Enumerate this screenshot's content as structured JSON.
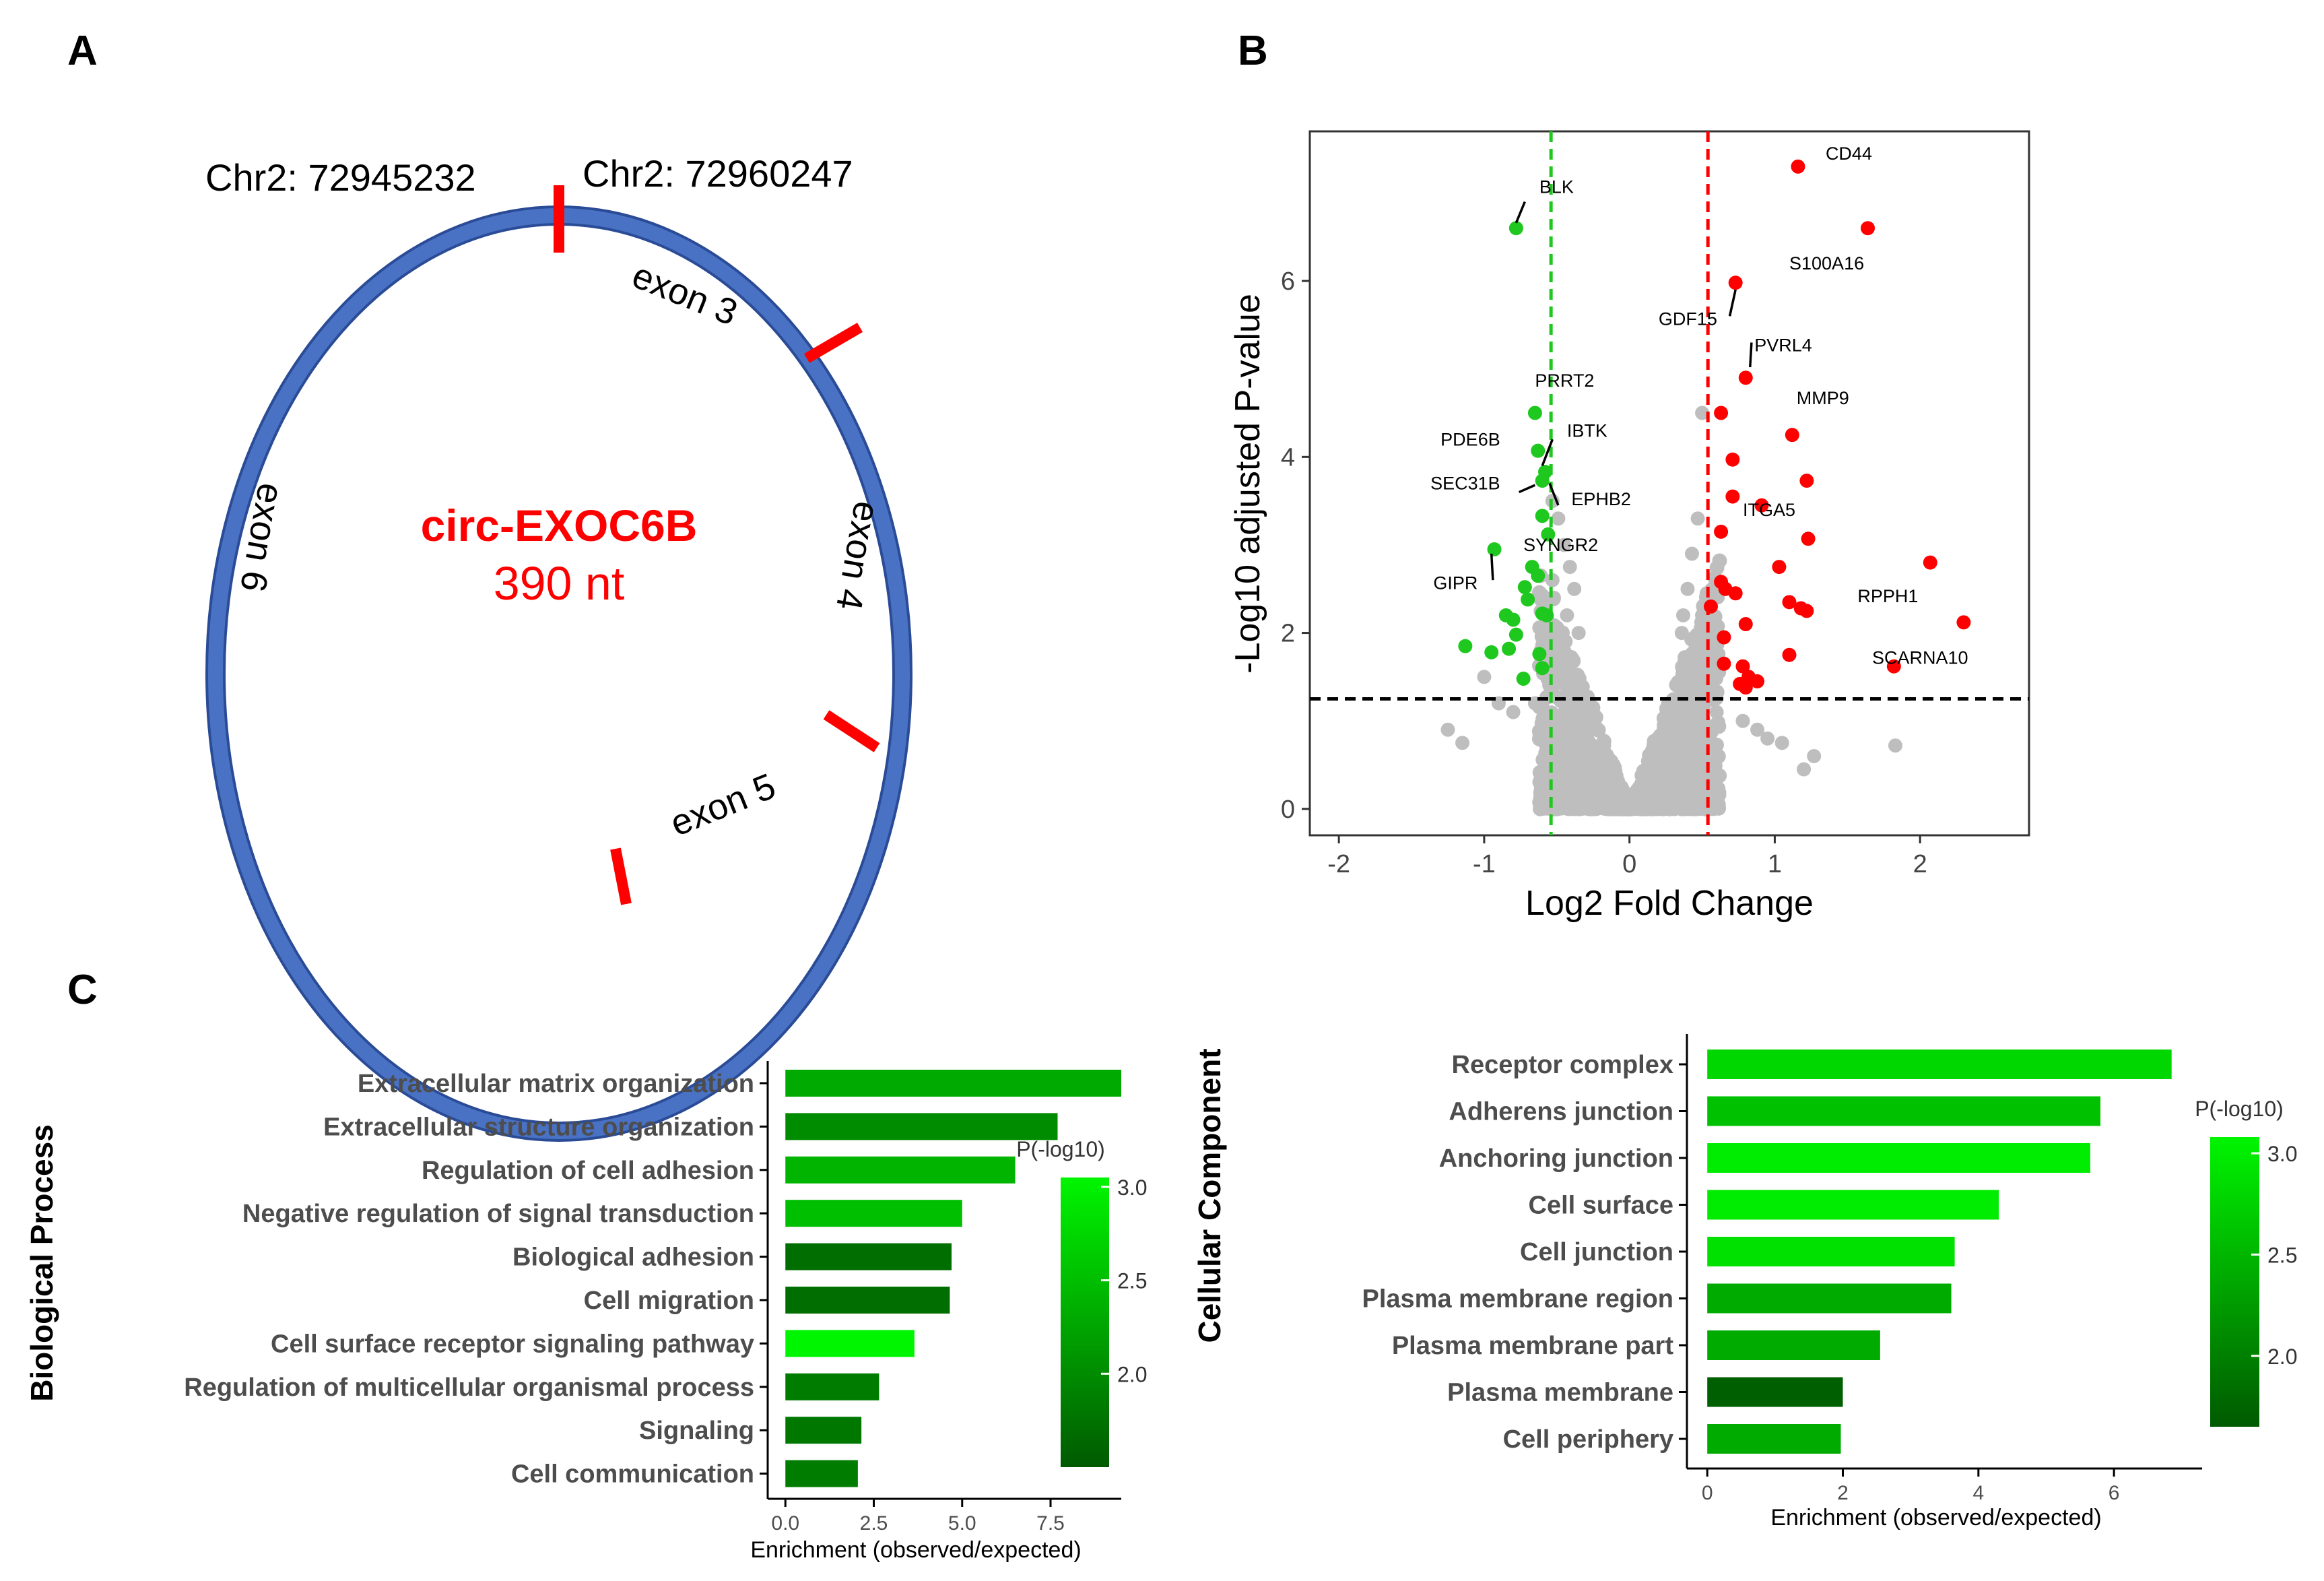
{
  "panels": {
    "a": {
      "letter": "A",
      "chr_left": "Chr2: 72945232",
      "chr_right": "Chr2: 72960247",
      "circ_name": "circ-EXOC6B",
      "circ_length": "390 nt",
      "exons": [
        "exon 3",
        "exon 4",
        "exon 5",
        "exon 6"
      ],
      "colors": {
        "ring": "#4a72c4",
        "ring_edge": "#2a4b96",
        "junction": "#ff0000",
        "label": "#ff0000"
      }
    },
    "b": {
      "letter": "B"
    },
    "c": {
      "letter": "C"
    }
  },
  "chart_data": [
    {
      "type": "scatter",
      "title": "",
      "xlabel": "Log2 Fold Change",
      "ylabel": "-Log10 adjusted P-value",
      "xlim": [
        -2.2,
        2.75
      ],
      "ylim": [
        -0.3,
        7.7
      ],
      "xticks": [
        -2,
        -1,
        0,
        1,
        2
      ],
      "yticks": [
        0,
        2,
        4,
        6
      ],
      "vlines": [
        -0.54,
        0.54
      ],
      "hline": 1.25,
      "colors": {
        "down": "#1ec81e",
        "up": "#ff0000",
        "ns": "#bebebe"
      },
      "series": [
        {
          "name": "down",
          "points": [
            [
              -0.78,
              6.6
            ],
            [
              -0.65,
              4.5
            ],
            [
              -0.63,
              4.07
            ],
            [
              -0.58,
              3.83
            ],
            [
              -0.6,
              3.73
            ],
            [
              -0.6,
              3.33
            ],
            [
              -0.56,
              3.12
            ],
            [
              -0.93,
              2.95
            ],
            [
              -0.67,
              2.75
            ],
            [
              -0.63,
              2.65
            ],
            [
              -0.72,
              2.52
            ],
            [
              -0.7,
              2.38
            ],
            [
              -0.85,
              2.2
            ],
            [
              -0.8,
              2.15
            ],
            [
              -0.6,
              2.22
            ],
            [
              -0.57,
              2.2
            ],
            [
              -0.78,
              1.98
            ],
            [
              -0.83,
              1.82
            ],
            [
              -1.13,
              1.85
            ],
            [
              -0.95,
              1.78
            ],
            [
              -0.62,
              1.76
            ],
            [
              -0.6,
              1.6
            ],
            [
              -0.73,
              1.48
            ]
          ]
        },
        {
          "name": "up",
          "points": [
            [
              1.16,
              7.3
            ],
            [
              1.64,
              6.6
            ],
            [
              0.73,
              5.98
            ],
            [
              0.8,
              4.9
            ],
            [
              0.63,
              4.5
            ],
            [
              1.12,
              4.25
            ],
            [
              0.71,
              3.97
            ],
            [
              1.22,
              3.73
            ],
            [
              0.71,
              3.55
            ],
            [
              0.91,
              3.45
            ],
            [
              0.63,
              3.15
            ],
            [
              1.23,
              3.07
            ],
            [
              2.07,
              2.8
            ],
            [
              1.03,
              2.75
            ],
            [
              0.63,
              2.58
            ],
            [
              0.66,
              2.5
            ],
            [
              0.73,
              2.45
            ],
            [
              0.56,
              2.3
            ],
            [
              1.1,
              2.35
            ],
            [
              1.18,
              2.28
            ],
            [
              1.22,
              2.25
            ],
            [
              0.8,
              2.1
            ],
            [
              2.3,
              2.12
            ],
            [
              0.65,
              1.95
            ],
            [
              1.1,
              1.75
            ],
            [
              0.65,
              1.65
            ],
            [
              0.78,
              1.62
            ],
            [
              0.82,
              1.5
            ],
            [
              0.88,
              1.45
            ],
            [
              0.76,
              1.42
            ],
            [
              0.8,
              1.38
            ],
            [
              1.82,
              1.62
            ]
          ]
        },
        {
          "name": "ns",
          "points": [
            [
              -0.53,
              3.5
            ],
            [
              -0.49,
              3.3
            ],
            [
              -0.45,
              3.0
            ],
            [
              -0.41,
              2.75
            ],
            [
              -0.38,
              2.5
            ],
            [
              -0.52,
              2.4
            ],
            [
              -0.43,
              2.2
            ],
            [
              -0.35,
              2.0
            ],
            [
              -0.53,
              2.6
            ],
            [
              -0.5,
              2.0
            ],
            [
              -1.0,
              1.5
            ],
            [
              -1.15,
              0.75
            ],
            [
              -0.9,
              1.2
            ],
            [
              -1.25,
              0.9
            ],
            [
              -0.55,
              1.8
            ],
            [
              0.5,
              4.5
            ],
            [
              0.47,
              3.3
            ],
            [
              0.43,
              2.9
            ],
            [
              0.4,
              2.5
            ],
            [
              0.37,
              2.2
            ],
            [
              0.36,
              2.0
            ],
            [
              0.5,
              2.2
            ],
            [
              0.45,
              1.8
            ],
            [
              0.52,
              2.0
            ],
            [
              1.2,
              0.45
            ],
            [
              1.27,
              0.6
            ],
            [
              1.83,
              0.72
            ],
            [
              0.95,
              0.8
            ],
            [
              1.05,
              0.75
            ],
            [
              0.56,
              1.7
            ],
            [
              0.6,
              1.1
            ],
            [
              -0.65,
              1.2
            ],
            [
              -0.8,
              1.1
            ],
            [
              0.78,
              1.0
            ],
            [
              0.88,
              0.9
            ]
          ]
        }
      ],
      "labels": [
        {
          "text": "CD44",
          "x": 1.35,
          "y": 7.38
        },
        {
          "text": "BLK",
          "x": -0.62,
          "y": 7.0
        },
        {
          "text": "S100A16",
          "x": 1.1,
          "y": 6.13
        },
        {
          "text": "GDF15",
          "x": 0.2,
          "y": 5.5
        },
        {
          "text": "PVRL4",
          "x": 0.86,
          "y": 5.2
        },
        {
          "text": "PRRT2",
          "x": -0.65,
          "y": 4.8
        },
        {
          "text": "MMP9",
          "x": 1.15,
          "y": 4.6
        },
        {
          "text": "IBTK",
          "x": -0.43,
          "y": 4.23
        },
        {
          "text": "PDE6B",
          "x": -1.3,
          "y": 4.13
        },
        {
          "text": "SEC31B",
          "x": -1.37,
          "y": 3.63
        },
        {
          "text": "EPHB2",
          "x": -0.4,
          "y": 3.45
        },
        {
          "text": "ITGA5",
          "x": 0.78,
          "y": 3.33
        },
        {
          "text": "SYNGR2",
          "x": -0.73,
          "y": 2.93
        },
        {
          "text": "GIPR",
          "x": -1.35,
          "y": 2.5
        },
        {
          "text": "RPPH1",
          "x": 1.57,
          "y": 2.35
        },
        {
          "text": "SCARNA10",
          "x": 1.67,
          "y": 1.65
        }
      ],
      "label_lines": [
        [
          -0.78,
          6.66,
          -0.72,
          6.9
        ],
        [
          0.73,
          5.9,
          0.69,
          5.6
        ],
        [
          0.83,
          5.02,
          0.84,
          5.3
        ],
        [
          -0.6,
          3.9,
          -0.53,
          4.2
        ],
        [
          -0.65,
          3.68,
          -0.76,
          3.6
        ],
        [
          -0.55,
          3.7,
          -0.49,
          3.45
        ],
        [
          -0.95,
          2.9,
          -0.94,
          2.6
        ]
      ]
    },
    {
      "type": "bar",
      "title": "",
      "side_title": "Biological Process",
      "xlabel": "Enrichment (observed/expected)",
      "ylabel": "",
      "xlim": [
        -0.5,
        9.5
      ],
      "xticks": [
        "0.0",
        "2.5",
        "5.0",
        "7.5"
      ],
      "xtick_values": [
        0,
        2.5,
        5,
        7.5
      ],
      "categories": [
        "Extracellular matrix organization",
        "Extracellular structure organization",
        "Regulation of cell adhesion",
        "Negative regulation of signal transduction",
        "Biological adhesion",
        "Cell migration",
        "Cell surface receptor signaling pathway",
        "Regulation of multicellular organismal process",
        "Signaling",
        "Cell communication"
      ],
      "values": [
        9.5,
        7.7,
        6.5,
        5.0,
        4.7,
        4.65,
        3.65,
        2.65,
        2.15,
        2.05
      ],
      "pvalues": [
        2.3,
        2.0,
        2.4,
        2.5,
        1.7,
        1.7,
        3.05,
        1.85,
        1.8,
        1.85
      ],
      "legend": {
        "title": "P(-log10)",
        "ticks": [
          "3.0",
          "2.5",
          "2.0"
        ],
        "tick_values": [
          3.0,
          2.5,
          2.0
        ],
        "range": [
          1.5,
          3.05
        ]
      },
      "colors": {
        "low": "#005a00",
        "high": "#00f500"
      }
    },
    {
      "type": "bar",
      "title": "",
      "side_title": "Cellular Component",
      "xlabel": "Enrichment (observed/expected)",
      "ylabel": "",
      "xlim": [
        -0.3,
        7.3
      ],
      "xticks": [
        "0",
        "2",
        "4",
        "6"
      ],
      "xtick_values": [
        0,
        2,
        4,
        6
      ],
      "categories": [
        "Receptor complex",
        "Adherens junction",
        "Anchoring junction",
        "Cell surface",
        "Cell junction",
        "Plasma membrane region",
        "Plasma membrane part",
        "Plasma membrane",
        "Cell periphery"
      ],
      "values": [
        6.85,
        5.8,
        5.65,
        4.3,
        3.65,
        3.6,
        2.55,
        2.0,
        1.97
      ],
      "pvalues": [
        2.8,
        2.6,
        3.0,
        3.0,
        2.9,
        2.4,
        2.4,
        1.7,
        2.4
      ],
      "legend": {
        "title": "P(-log10)",
        "ticks": [
          "3.0",
          "2.5",
          "2.0"
        ],
        "tick_values": [
          3.0,
          2.5,
          2.0
        ],
        "range": [
          1.65,
          3.08
        ]
      },
      "colors": {
        "low": "#005a00",
        "high": "#00f500"
      }
    }
  ]
}
